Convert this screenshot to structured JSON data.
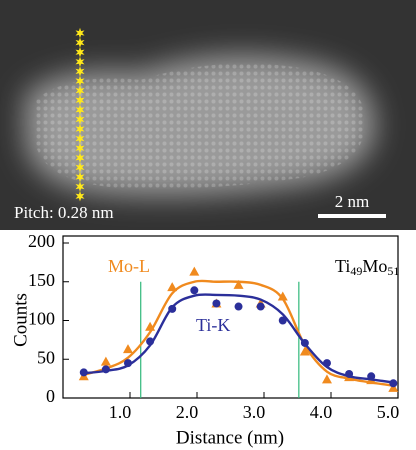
{
  "image": {
    "pitch_label": "Pitch: 0.28 nm",
    "scale_label": "2 nm"
  },
  "chart_data": {
    "type": "scatter",
    "xlabel": "Distance (nm)",
    "ylabel": "Counts",
    "x": [
      0.31,
      0.64,
      0.97,
      1.3,
      1.63,
      1.96,
      2.29,
      2.62,
      2.95,
      3.28,
      3.61,
      3.94,
      4.27,
      4.6,
      4.93
    ],
    "series": [
      {
        "name": "Mo-L",
        "color": "#f08a1e",
        "marker": "triangle",
        "values": [
          28,
          47,
          63,
          92,
          143,
          163,
          122,
          146,
          122,
          131,
          60,
          24,
          27,
          23,
          13
        ],
        "fit": [
          30,
          38,
          52,
          85,
          135,
          150,
          150,
          150,
          146,
          128,
          68,
          34,
          25,
          20,
          16
        ]
      },
      {
        "name": "Ti-K",
        "color": "#2b2f9a",
        "marker": "circle",
        "values": [
          33,
          37,
          45,
          73,
          115,
          139,
          122,
          118,
          118,
          100,
          71,
          45,
          31,
          28,
          19
        ],
        "fit": [
          32,
          35,
          42,
          68,
          117,
          132,
          133,
          132,
          127,
          108,
          70,
          40,
          28,
          24,
          20
        ]
      }
    ],
    "vlines": [
      1.16,
      3.52
    ],
    "vline_color": "#2fb87a",
    "composition": [
      "Ti",
      "49",
      "Mo",
      "51"
    ],
    "xlim": [
      0,
      5
    ],
    "ylim": [
      0,
      200
    ],
    "xticks": [
      {
        "value": 1,
        "label": "1.0"
      },
      {
        "value": 2,
        "label": "2.0"
      },
      {
        "value": 3,
        "label": "3.0"
      },
      {
        "value": 4,
        "label": "4.0"
      },
      {
        "value": 5,
        "label": "5.0"
      }
    ],
    "yticks": [
      0,
      50,
      100,
      150,
      200
    ]
  }
}
